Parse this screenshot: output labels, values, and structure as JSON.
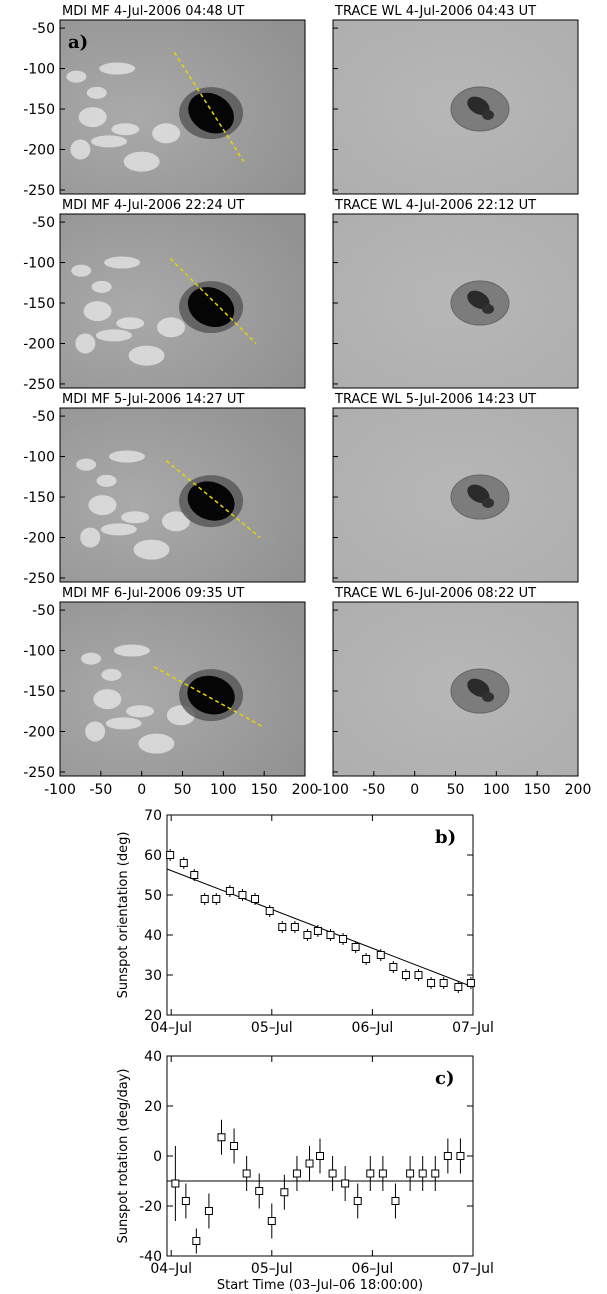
{
  "chart_data": [
    {
      "type": "image_grid",
      "panel_tag": "a)",
      "x_ticks": [
        "-100",
        "-50",
        "0",
        "50",
        "100",
        "150",
        "200"
      ],
      "y_ticks": [
        "-50",
        "-100",
        "-150",
        "-200",
        "-250"
      ],
      "xlim": [
        -100,
        200
      ],
      "ylim": [
        -255,
        -40
      ],
      "rows": [
        {
          "left_title": "MDI MF   4-Jul-2006  04:48  UT",
          "right_title": "TRACE WL  4-Jul-2006  04:43  UT",
          "orientation_line": {
            "x": [
              40,
              125
            ],
            "y": [
              -80,
              -215
            ]
          }
        },
        {
          "left_title": "MDI MF   4-Jul-2006  22:24  UT",
          "right_title": "TRACE WL  4-Jul-2006  22:12  UT",
          "orientation_line": {
            "x": [
              35,
              140
            ],
            "y": [
              -95,
              -200
            ]
          }
        },
        {
          "left_title": "MDI MF   5-Jul-2006  14:27  UT",
          "right_title": "TRACE WL  5-Jul-2006  14:23  UT",
          "orientation_line": {
            "x": [
              30,
              145
            ],
            "y": [
              -105,
              -200
            ]
          }
        },
        {
          "left_title": "MDI MF   6-Jul-2006  09:35  UT",
          "right_title": "TRACE WL  6-Jul-2006  08:22  UT",
          "orientation_line": {
            "x": [
              15,
              150
            ],
            "y": [
              -120,
              -195
            ]
          }
        }
      ],
      "line_color": "#e8d400"
    },
    {
      "type": "scatter",
      "panel_tag": "b)",
      "ylabel": "Sunspot orientation (deg)",
      "x_tick_labels": [
        "04–Jul",
        "05–Jul",
        "06–Jul",
        "07–Jul"
      ],
      "x_tick_positions": [
        6,
        30,
        54,
        78
      ],
      "y_ticks": [
        20,
        30,
        40,
        50,
        60,
        70
      ],
      "xlim": [
        5,
        78
      ],
      "ylim": [
        20,
        70
      ],
      "points": [
        {
          "x": 5.75,
          "y": 60,
          "err": 1.5
        },
        {
          "x": 9.0,
          "y": 58,
          "err": 1.5
        },
        {
          "x": 11.5,
          "y": 55,
          "err": 1.5
        },
        {
          "x": 14.0,
          "y": 49,
          "err": 1.5
        },
        {
          "x": 16.75,
          "y": 49,
          "err": 1.5
        },
        {
          "x": 20.0,
          "y": 51,
          "err": 1.5
        },
        {
          "x": 23.0,
          "y": 50,
          "err": 1.5
        },
        {
          "x": 26.0,
          "y": 49,
          "err": 1.5
        },
        {
          "x": 29.5,
          "y": 46,
          "err": 1.5
        },
        {
          "x": 32.5,
          "y": 42,
          "err": 1.5
        },
        {
          "x": 35.5,
          "y": 42,
          "err": 1.5
        },
        {
          "x": 38.5,
          "y": 40,
          "err": 1.5
        },
        {
          "x": 41.0,
          "y": 41,
          "err": 1.5
        },
        {
          "x": 44.0,
          "y": 40,
          "err": 1.5
        },
        {
          "x": 47.0,
          "y": 39,
          "err": 1.5
        },
        {
          "x": 50.0,
          "y": 37,
          "err": 1.5
        },
        {
          "x": 52.5,
          "y": 34,
          "err": 1.5
        },
        {
          "x": 56.0,
          "y": 35,
          "err": 1.5
        },
        {
          "x": 59.0,
          "y": 32,
          "err": 1.5
        },
        {
          "x": 62.0,
          "y": 30,
          "err": 1.5
        },
        {
          "x": 65.0,
          "y": 30,
          "err": 1.5
        },
        {
          "x": 68.0,
          "y": 28,
          "err": 1.5
        },
        {
          "x": 71.0,
          "y": 28,
          "err": 1.5
        },
        {
          "x": 74.5,
          "y": 27,
          "err": 1.5
        },
        {
          "x": 77.5,
          "y": 28,
          "err": 1.5
        }
      ],
      "fit_line": {
        "x": [
          5,
          78
        ],
        "y": [
          56.5,
          27
        ]
      }
    },
    {
      "type": "scatter",
      "panel_tag": "c)",
      "ylabel": "Sunspot rotation (deg/day)",
      "xlabel": "Start Time (03–Jul–06 18:00:00)",
      "x_tick_labels": [
        "04–Jul",
        "05–Jul",
        "06–Jul",
        "07–Jul"
      ],
      "x_tick_positions": [
        6,
        30,
        54,
        78
      ],
      "y_ticks": [
        -40,
        -20,
        0,
        20,
        40
      ],
      "xlim": [
        5,
        78
      ],
      "ylim": [
        -40,
        40
      ],
      "points": [
        {
          "x": 7.0,
          "y": -11,
          "err": 15
        },
        {
          "x": 9.5,
          "y": -18,
          "err": 7
        },
        {
          "x": 12.0,
          "y": -34,
          "err": 5
        },
        {
          "x": 15.0,
          "y": -22,
          "err": 7
        },
        {
          "x": 18.0,
          "y": 7.5,
          "err": 7
        },
        {
          "x": 21.0,
          "y": 4,
          "err": 7
        },
        {
          "x": 24.0,
          "y": -7,
          "err": 7
        },
        {
          "x": 27.0,
          "y": -14,
          "err": 7
        },
        {
          "x": 30.0,
          "y": -26,
          "err": 7
        },
        {
          "x": 33.0,
          "y": -14.5,
          "err": 7
        },
        {
          "x": 36.0,
          "y": -7,
          "err": 7
        },
        {
          "x": 39.0,
          "y": -3,
          "err": 7
        },
        {
          "x": 41.5,
          "y": 0,
          "err": 7
        },
        {
          "x": 44.5,
          "y": -7,
          "err": 7
        },
        {
          "x": 47.5,
          "y": -11,
          "err": 7
        },
        {
          "x": 50.5,
          "y": -18,
          "err": 7
        },
        {
          "x": 53.5,
          "y": -7,
          "err": 7
        },
        {
          "x": 56.5,
          "y": -7,
          "err": 7
        },
        {
          "x": 59.5,
          "y": -18,
          "err": 7
        },
        {
          "x": 63.0,
          "y": -7,
          "err": 7
        },
        {
          "x": 66.0,
          "y": -7,
          "err": 7
        },
        {
          "x": 69.0,
          "y": -7,
          "err": 7
        },
        {
          "x": 72.0,
          "y": 0,
          "err": 7
        },
        {
          "x": 75.0,
          "y": 0,
          "err": 7
        }
      ],
      "mean_line": {
        "y": -10
      }
    }
  ]
}
